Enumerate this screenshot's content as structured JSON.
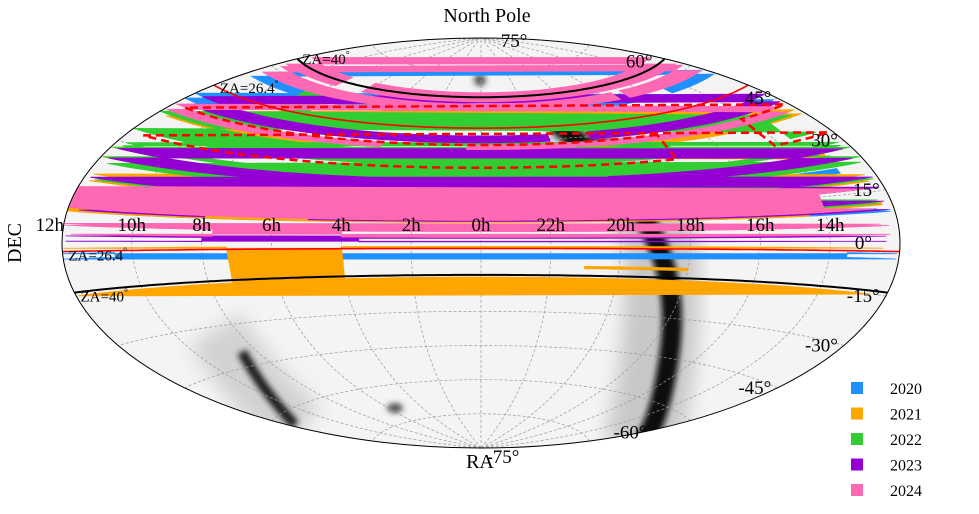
{
  "chart_data": {
    "type": "sky-map",
    "projection": "aitoff",
    "title": "North Pole",
    "xlabel": "RA",
    "ylabel": "DEC",
    "ra_tick_labels": [
      "10h",
      "8h",
      "6h",
      "4h",
      "2h",
      "0h",
      "22h",
      "20h",
      "18h",
      "16h",
      "14h",
      "12h"
    ],
    "ra_tick_values_hours": [
      10,
      8,
      6,
      4,
      2,
      0,
      22,
      20,
      18,
      16,
      14,
      12
    ],
    "dec_tick_labels": [
      "75°",
      "60°",
      "45°",
      "30°",
      "15°",
      "0°",
      "-15°",
      "-30°",
      "-45°",
      "-60°",
      "-75°"
    ],
    "dec_tick_values_deg": [
      75,
      60,
      45,
      30,
      15,
      0,
      -15,
      -30,
      -45,
      -60,
      -75
    ],
    "za_limits": [
      {
        "label": "ZA=40",
        "sup": "°",
        "color": "#000000",
        "dec_lines": [
          64,
          -14
        ]
      },
      {
        "label": "ZA=26.4",
        "sup": "°",
        "color": "#ff0000",
        "dec_lines": [
          50.4,
          -2.4
        ]
      }
    ],
    "legend": {
      "placement": "bottom-right",
      "items": [
        {
          "label": "2020",
          "color": "#1e90ff"
        },
        {
          "label": "2021",
          "color": "#ffa500"
        },
        {
          "label": "2022",
          "color": "#32cd32"
        },
        {
          "label": "2023",
          "color": "#9400d3"
        },
        {
          "label": "2024",
          "color": "#ff69b4"
        }
      ]
    },
    "scans": [
      {
        "year": "2020",
        "ra_from": 10.5,
        "ra_to": 13.5,
        "dec_from": -3,
        "dec_to": -4.5
      },
      {
        "year": "2020",
        "ra_from": 13.0,
        "ra_to": 9.2,
        "dec_from": 23,
        "dec_to": 21.5
      },
      {
        "year": "2020",
        "ra_from": 7.0,
        "ra_to": 15.0,
        "dec_from": 47,
        "dec_to": 45
      },
      {
        "year": "2020",
        "ra_from": 1.2,
        "ra_to": 18.0,
        "dec_from": 9.5,
        "dec_to": 9
      },
      {
        "year": "2020",
        "ra_from": 10.3,
        "ra_to": 8.3,
        "dec_from": 11,
        "dec_to": 10
      },
      {
        "year": "2020",
        "ra_from": 16.2,
        "ra_to": 15.0,
        "dec_from": 58,
        "dec_to": 56
      },
      {
        "year": "2021",
        "ra_from": 7.3,
        "ra_to": 4.0,
        "dec_from": -1.5,
        "dec_to": -15
      },
      {
        "year": "2021",
        "ra_from": 9.2,
        "ra_to": 6.0,
        "dec_from": 20,
        "dec_to": 18
      },
      {
        "year": "2021",
        "ra_from": 7.8,
        "ra_to": 8.9,
        "dec_from": 43,
        "dec_to": 41
      },
      {
        "year": "2021",
        "ra_from": 5.0,
        "ra_to": 3.0,
        "dec_from": 41,
        "dec_to": 39.5
      },
      {
        "year": "2021",
        "ra_from": 16.0,
        "ra_to": 17.8,
        "dec_from": 42,
        "dec_to": 41
      },
      {
        "year": "2021",
        "ra_from": 16.0,
        "ra_to": 13.0,
        "dec_from": 28,
        "dec_to": 25
      },
      {
        "year": "2021",
        "ra_from": 12.3,
        "ra_to": 10.3,
        "dec_from": 12,
        "dec_to": 11
      },
      {
        "year": "2021",
        "ra_from": 14.5,
        "ra_to": 12.0,
        "dec_from": 10,
        "dec_to": 9
      },
      {
        "year": "2021",
        "ra_from": 18.0,
        "ra_to": 21.0,
        "dec_from": -10,
        "dec_to": -11
      },
      {
        "year": "2022",
        "ra_from": 7.2,
        "ra_to": 8.6,
        "dec_from": 60,
        "dec_to": 50
      },
      {
        "year": "2022",
        "ra_from": 9.0,
        "ra_to": 13.2,
        "dec_from": 28,
        "dec_to": 25
      },
      {
        "year": "2022",
        "ra_from": 3.8,
        "ra_to": 0.7,
        "dec_from": 23.5,
        "dec_to": 18.5
      },
      {
        "year": "2022",
        "ra_from": 4.0,
        "ra_to": 2.0,
        "dec_from": 30,
        "dec_to": 29
      },
      {
        "year": "2022",
        "ra_from": 17.5,
        "ra_to": 13.5,
        "dec_from": 40,
        "dec_to": 34
      },
      {
        "year": "2022",
        "ra_from": 12.9,
        "ra_to": 17.0,
        "dec_from": 27,
        "dec_to": 24
      },
      {
        "year": "2022",
        "ra_from": 4.5,
        "ra_to": 1.5,
        "dec_from": 12.5,
        "dec_to": 11.5
      },
      {
        "year": "2023",
        "ra_from": 21.5,
        "ra_to": 20.0,
        "dec_from": 47,
        "dec_to": 44
      },
      {
        "year": "2023",
        "ra_from": 22.0,
        "ra_to": 20.0,
        "dec_from": 28,
        "dec_to": 25
      },
      {
        "year": "2023",
        "ra_from": 5.0,
        "ra_to": 18.0,
        "dec_from": 19,
        "dec_to": 16
      },
      {
        "year": "2023",
        "ra_from": 8.0,
        "ra_to": 5.0,
        "dec_from": 12,
        "dec_to": 9.5
      },
      {
        "year": "2023",
        "ra_from": 8.0,
        "ra_to": 3.5,
        "dec_from": 2,
        "dec_to": 0.5
      },
      {
        "year": "2024",
        "ra_from": 7.8,
        "ra_to": 6.2,
        "dec_from": 66,
        "dec_to": 62
      },
      {
        "year": "2024",
        "ra_from": 3.5,
        "ra_to": 0.5,
        "dec_from": 43,
        "dec_to": 41
      },
      {
        "year": "2024",
        "ra_from": 14.0,
        "ra_to": 12.0,
        "dec_from": 16,
        "dec_to": 10
      },
      {
        "year": "2024",
        "ra_from": 12.0,
        "ra_to": 10.5,
        "dec_from": 16,
        "dec_to": 10
      },
      {
        "year": "2024",
        "ra_from": 7.7,
        "ra_to": 4.0,
        "dec_from": 5,
        "dec_to": 2.5
      },
      {
        "year": "2024",
        "ra_from": 5.0,
        "ra_to": 1.0,
        "dec_from": 5.5,
        "dec_to": 5
      },
      {
        "year": "2024",
        "ra_from": 17.4,
        "ra_to": 16.9,
        "dec_from": 61,
        "dec_to": 58
      }
    ],
    "dashed_regions": [
      {
        "color": "#ff0000",
        "ra_from": 17.6,
        "ra_to": 14.2,
        "dec_from": 43,
        "dec_to": 33
      }
    ],
    "grid": true
  }
}
